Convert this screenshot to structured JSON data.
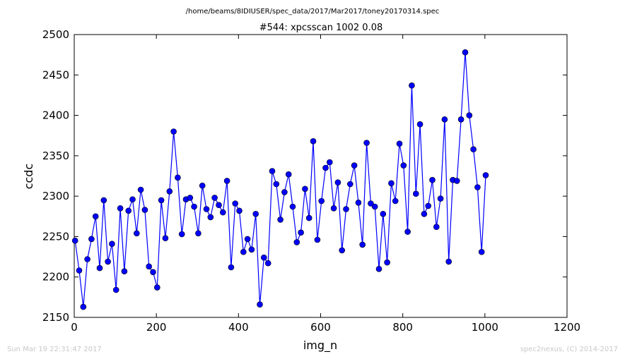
{
  "header": {
    "suptitle": "/home/beams/8IDIUSER/spec_data/2017/Mar2017/toney20170314.spec",
    "title": "#544: xpcsscan 1002 0.08"
  },
  "footer": {
    "timestamp": "Sun Mar 19 22:31:47 2017",
    "credit": "spec2nexus, (C) 2014-2017"
  },
  "chart_data": {
    "type": "line",
    "title": "#544: xpcsscan 1002 0.08",
    "xlabel": "img_n",
    "ylabel": "ccdc",
    "xlim": [
      0,
      1200
    ],
    "ylim": [
      2150,
      2500
    ],
    "xticks": [
      0,
      200,
      400,
      600,
      800,
      1000,
      1200
    ],
    "yticks": [
      2150,
      2200,
      2250,
      2300,
      2350,
      2400,
      2450,
      2500
    ],
    "grid": false,
    "legend": "none",
    "marker": "circle",
    "color": "#0000ff",
    "series": [
      {
        "x": [
          2,
          12,
          22,
          32,
          42,
          52,
          62,
          72,
          82,
          92,
          102,
          112,
          122,
          132,
          142,
          152,
          162,
          172,
          182,
          192,
          202,
          212,
          222,
          232,
          242,
          252,
          262,
          272,
          282,
          292,
          302,
          312,
          322,
          332,
          342,
          352,
          362,
          372,
          382,
          392,
          402,
          412,
          422,
          432,
          442,
          452,
          462,
          472,
          482,
          492,
          502,
          512,
          522,
          532,
          542,
          552,
          562,
          572,
          582,
          592,
          602,
          612,
          622,
          632,
          642,
          652,
          662,
          672,
          682,
          692,
          702,
          712,
          722,
          732,
          742,
          752,
          762,
          772,
          782,
          792,
          802,
          812,
          822,
          832,
          842,
          852,
          862,
          872,
          882,
          892,
          902,
          912,
          922,
          932,
          942,
          952,
          962,
          972,
          982,
          992,
          1002
        ],
        "y": [
          2245,
          2208,
          2163,
          2222,
          2247,
          2275,
          2211,
          2295,
          2219,
          2241,
          2184,
          2285,
          2207,
          2282,
          2296,
          2254,
          2308,
          2283,
          2213,
          2206,
          2187,
          2295,
          2248,
          2306,
          2380,
          2323,
          2253,
          2296,
          2298,
          2287,
          2254,
          2313,
          2284,
          2274,
          2298,
          2289,
          2280,
          2319,
          2212,
          2291,
          2282,
          2231,
          2247,
          2234,
          2278,
          2166,
          2224,
          2217,
          2331,
          2315,
          2271,
          2305,
          2327,
          2287,
          2243,
          2255,
          2309,
          2273,
          2368,
          2246,
          2294,
          2335,
          2342,
          2285,
          2317,
          2233,
          2284,
          2315,
          2338,
          2292,
          2240,
          2366,
          2291,
          2287,
          2210,
          2278,
          2218,
          2316,
          2294,
          2365,
          2338,
          2256,
          2437,
          2303,
          2389,
          2278,
          2288,
          2320,
          2262,
          2297,
          2395,
          2219,
          2320,
          2319,
          2395,
          2478,
          2400,
          2358,
          2311,
          2231,
          2326
        ]
      }
    ]
  }
}
